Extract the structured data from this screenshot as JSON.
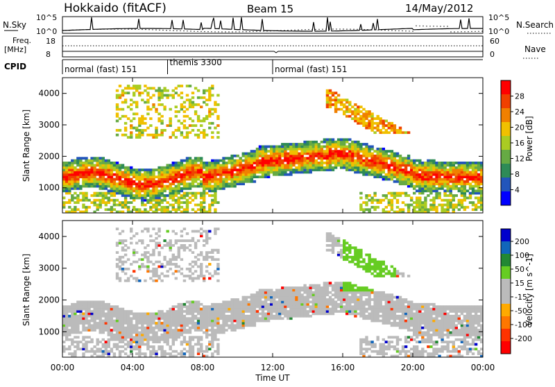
{
  "header": {
    "station": "Hokkaido (fitACF)",
    "beam": "Beam 15",
    "date": "14/May/2012"
  },
  "top_panels": {
    "nsky_label": "N.Sky",
    "nsky_ticks": [
      "10^5",
      "10^0"
    ],
    "nsearch_label": "N.Search",
    "freq_label_line1": "Freq.",
    "freq_label_line2": "[MHz]",
    "freq_ticks": [
      "18",
      "8"
    ],
    "nave_ticks": [
      "60",
      "0"
    ],
    "nave_label": "Nave",
    "cpid_label": "CPID"
  },
  "cpid_segments": [
    {
      "label": "normal (fast) 151",
      "start_hour": 0,
      "end_hour": 6
    },
    {
      "label": "themis 3300",
      "start_hour": 6,
      "end_hour": 12
    },
    {
      "label": "normal (fast) 151",
      "start_hour": 12,
      "end_hour": 24
    }
  ],
  "colors": {
    "power_scale": [
      "#0000ff",
      "#2255bb",
      "#2e8b57",
      "#66aa44",
      "#aacc22",
      "#f0c000",
      "#f08000",
      "#f04000",
      "#ff0000"
    ],
    "velocity_scale": [
      "#0000cc",
      "#1166bb",
      "#228833",
      "#66cc22",
      "#bbbbbb",
      "#bbbbbb",
      "#ffaa00",
      "#ff7700",
      "#ff3300",
      "#ff0000"
    ],
    "ground_scatter": "#bbbbbb"
  },
  "chart_data": [
    {
      "type": "heatmap",
      "name": "power",
      "ylabel": "Slant Range [km]",
      "ylim": [
        200,
        4500
      ],
      "y_ticks": [
        1000,
        2000,
        3000,
        4000
      ],
      "xlim": [
        0,
        24
      ],
      "colorbar_label": "Power [dB]",
      "colorbar_ticks": [
        4,
        8,
        12,
        16,
        20,
        24,
        28
      ],
      "colorbar_range": [
        0,
        32
      ]
    },
    {
      "type": "heatmap",
      "name": "velocity",
      "ylabel": "Slant Range [km]",
      "ylim": [
        200,
        4500
      ],
      "y_ticks": [
        1000,
        2000,
        3000,
        4000
      ],
      "xlim": [
        0,
        24
      ],
      "xlabel": "Time UT",
      "x_ticks": [
        "00:00",
        "04:00",
        "08:00",
        "12:00",
        "16:00",
        "20:00",
        "00:00"
      ],
      "colorbar_label": "Velocity [m s^-1]",
      "colorbar_ticks": [
        "200",
        "100",
        "50",
        "15",
        "-15",
        "-50",
        "-100",
        "-200"
      ]
    }
  ]
}
